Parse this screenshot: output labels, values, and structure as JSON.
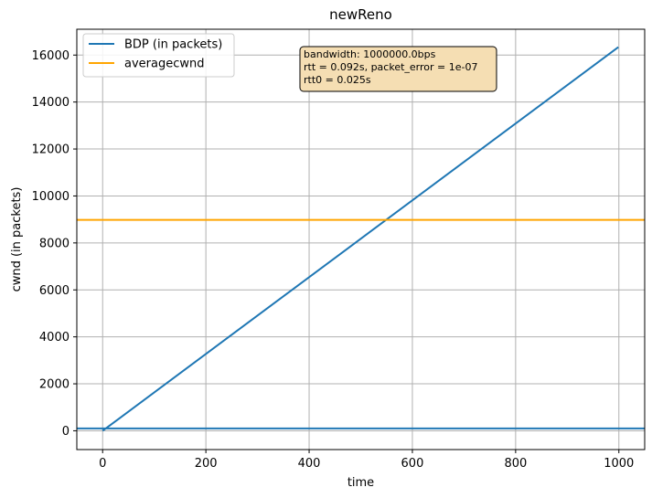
{
  "chart_data": {
    "type": "line",
    "title": "newReno",
    "xlabel": "time",
    "ylabel": "cwnd (in packets)",
    "xlim": [
      -50,
      1050
    ],
    "ylim": [
      -800,
      17100
    ],
    "xticks": [
      0,
      200,
      400,
      600,
      800,
      1000
    ],
    "yticks": [
      0,
      2000,
      4000,
      6000,
      8000,
      10000,
      12000,
      14000,
      16000
    ],
    "grid": true,
    "legend_position": "top-left",
    "series": [
      {
        "name": "BDP (in packets)",
        "color": "#1f77b4",
        "kind": "line",
        "x": [
          0,
          999
        ],
        "y": [
          0,
          16340
        ]
      },
      {
        "name": "averagecwnd",
        "color": "#ffa500",
        "kind": "hline",
        "y": 8980
      },
      {
        "name": "",
        "color": "#1f77b4",
        "kind": "hline",
        "y": 100
      }
    ],
    "annotation": {
      "lines": [
        "bandwidth: 1000000.0bps",
        " rtt = 0.092s, packet_error = 1e-07",
        " rtt0 = 0.025s"
      ],
      "background": "#f5deb3"
    }
  }
}
